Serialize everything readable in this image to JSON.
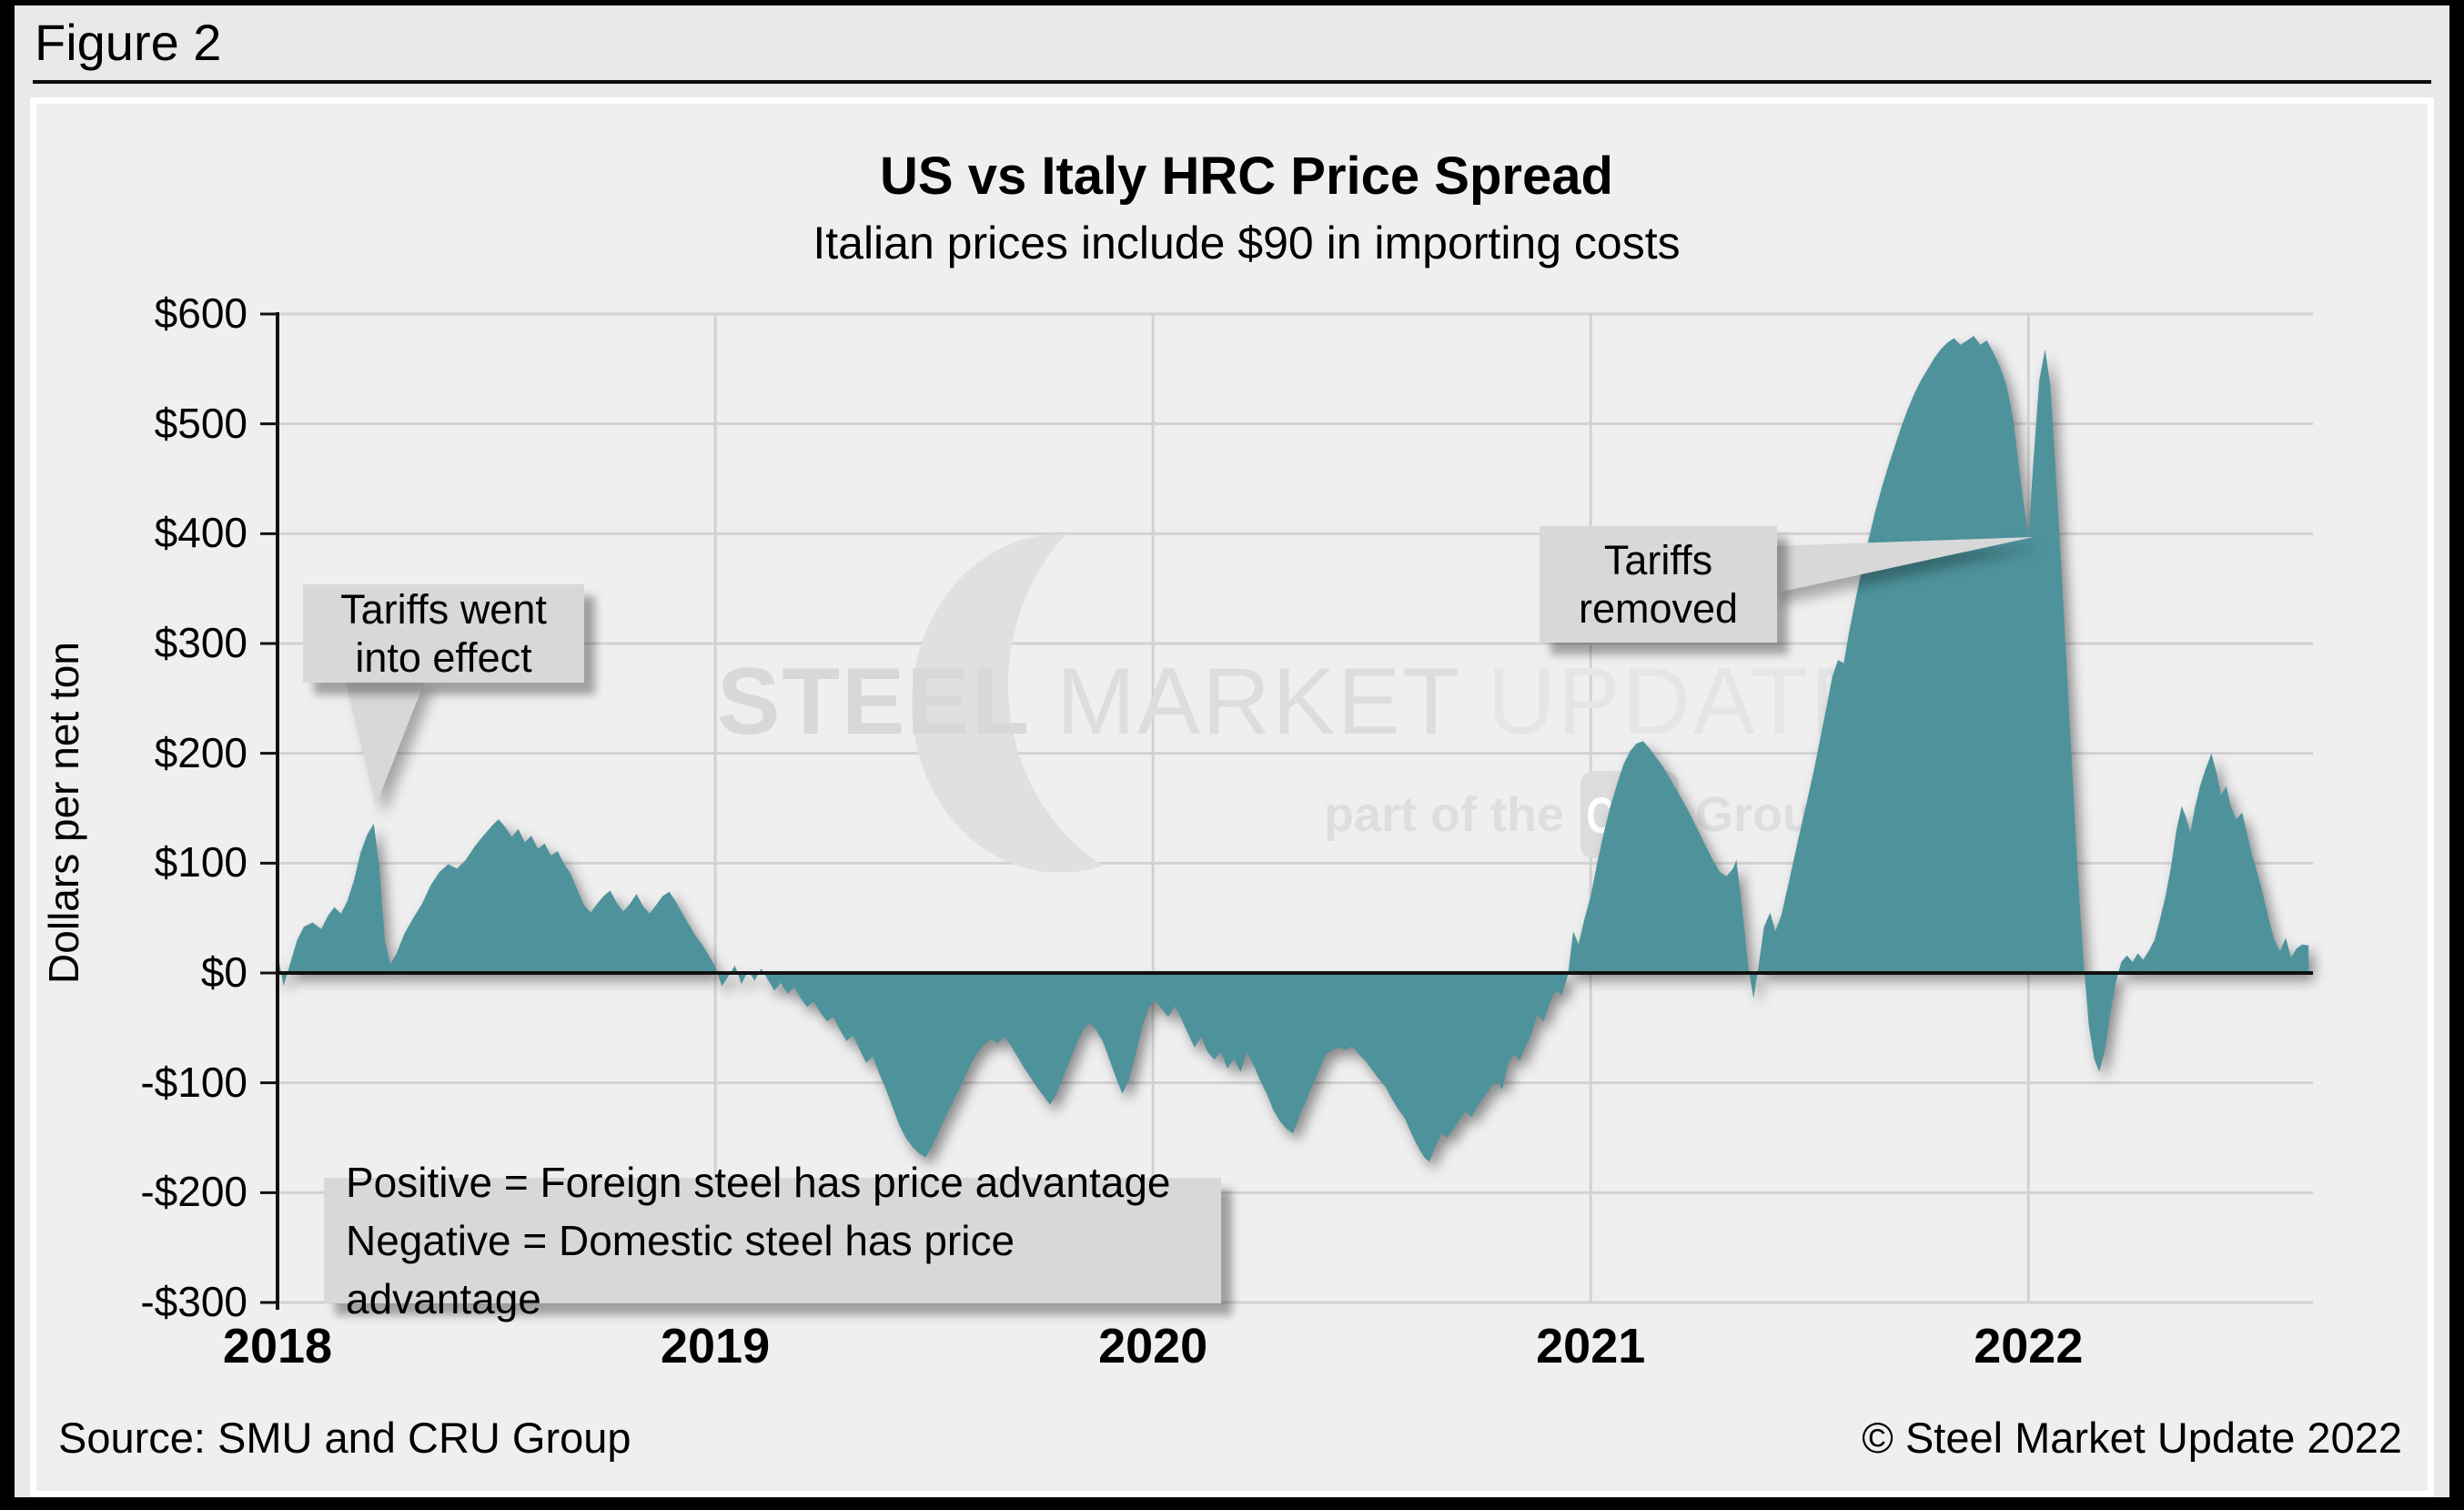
{
  "figure_label": "Figure 2",
  "header": {
    "title": "US vs Italy HRC Price Spread",
    "subtitle": "Italian prices include $90 in importing costs"
  },
  "y_axis_title": "Dollars per net ton",
  "annotations": {
    "tariffs_in_effect": "Tariffs went\ninto effect",
    "tariffs_removed": "Tariffs\nremoved",
    "note": "Positive = Foreign steel has price advantage\nNegative = Domestic steel has price advantage"
  },
  "watermark": {
    "word1": "STEEL",
    "word2": "MARKET",
    "word3": "UPDATE",
    "tagline_prefix": "part of the",
    "badge": "CRU",
    "tagline_suffix": "Group"
  },
  "footer": {
    "source": "Source: SMU and CRU Group",
    "copyright": "© Steel Market Update 2022"
  },
  "colors": {
    "area_fill": "#4e939c",
    "gridline": "#d2d2d2",
    "axis": "#111111",
    "panel_bg": "#efefef",
    "page_bg": "#e9e9e9",
    "callout_bg": "#d8d8d8",
    "watermark_gray": "#dedede"
  },
  "chart_data": {
    "type": "area",
    "title": "US vs Italy HRC Price Spread",
    "subtitle": "Italian prices include $90 in importing costs",
    "xlabel": "",
    "ylabel": "Dollars per net ton",
    "series_name": "US minus Italy HRC price spread, $ per net ton",
    "xlim": [
      2018.0,
      2022.65
    ],
    "ylim": [
      -300,
      600
    ],
    "grid": true,
    "x_ticks": [
      {
        "value": 2018,
        "label": "2018"
      },
      {
        "value": 2019,
        "label": "2019"
      },
      {
        "value": 2020,
        "label": "2020"
      },
      {
        "value": 2021,
        "label": "2021"
      },
      {
        "value": 2022,
        "label": "2022"
      }
    ],
    "y_ticks": [
      {
        "value": 600,
        "label": "$600"
      },
      {
        "value": 500,
        "label": "$500"
      },
      {
        "value": 400,
        "label": "$400"
      },
      {
        "value": 300,
        "label": "$300"
      },
      {
        "value": 200,
        "label": "$200"
      },
      {
        "value": 100,
        "label": "$100"
      },
      {
        "value": 0,
        "label": "$0"
      },
      {
        "value": -100,
        "label": "-$100"
      },
      {
        "value": -200,
        "label": "-$200"
      },
      {
        "value": -300,
        "label": "-$300"
      }
    ],
    "points": [
      [
        2018.0,
        18
      ],
      [
        2018.014,
        -12
      ],
      [
        2018.03,
        10
      ],
      [
        2018.045,
        30
      ],
      [
        2018.06,
        42
      ],
      [
        2018.08,
        46
      ],
      [
        2018.1,
        40
      ],
      [
        2018.115,
        52
      ],
      [
        2018.13,
        60
      ],
      [
        2018.145,
        54
      ],
      [
        2018.16,
        66
      ],
      [
        2018.175,
        85
      ],
      [
        2018.19,
        110
      ],
      [
        2018.205,
        126
      ],
      [
        2018.22,
        136
      ],
      [
        2018.233,
        95
      ],
      [
        2018.245,
        30
      ],
      [
        2018.258,
        8
      ],
      [
        2018.272,
        18
      ],
      [
        2018.29,
        36
      ],
      [
        2018.31,
        50
      ],
      [
        2018.33,
        63
      ],
      [
        2018.35,
        80
      ],
      [
        2018.37,
        92
      ],
      [
        2018.39,
        99
      ],
      [
        2018.41,
        95
      ],
      [
        2018.43,
        103
      ],
      [
        2018.45,
        115
      ],
      [
        2018.47,
        125
      ],
      [
        2018.49,
        134
      ],
      [
        2018.505,
        140
      ],
      [
        2018.52,
        133
      ],
      [
        2018.535,
        124
      ],
      [
        2018.55,
        131
      ],
      [
        2018.565,
        119
      ],
      [
        2018.58,
        125
      ],
      [
        2018.595,
        113
      ],
      [
        2018.61,
        118
      ],
      [
        2018.625,
        107
      ],
      [
        2018.64,
        111
      ],
      [
        2018.655,
        99
      ],
      [
        2018.67,
        90
      ],
      [
        2018.685,
        76
      ],
      [
        2018.7,
        62
      ],
      [
        2018.715,
        55
      ],
      [
        2018.73,
        63
      ],
      [
        2018.745,
        70
      ],
      [
        2018.76,
        75
      ],
      [
        2018.775,
        64
      ],
      [
        2018.79,
        56
      ],
      [
        2018.805,
        63
      ],
      [
        2018.82,
        72
      ],
      [
        2018.835,
        61
      ],
      [
        2018.85,
        54
      ],
      [
        2018.865,
        62
      ],
      [
        2018.88,
        70
      ],
      [
        2018.895,
        74
      ],
      [
        2018.91,
        65
      ],
      [
        2018.925,
        54
      ],
      [
        2018.94,
        44
      ],
      [
        2018.955,
        34
      ],
      [
        2018.97,
        26
      ],
      [
        2018.985,
        16
      ],
      [
        2019.0,
        6
      ],
      [
        2019.015,
        -12
      ],
      [
        2019.03,
        -3
      ],
      [
        2019.045,
        7
      ],
      [
        2019.06,
        -10
      ],
      [
        2019.075,
        2
      ],
      [
        2019.09,
        -7
      ],
      [
        2019.105,
        4
      ],
      [
        2019.12,
        -6
      ],
      [
        2019.135,
        -16
      ],
      [
        2019.15,
        -9
      ],
      [
        2019.165,
        -19
      ],
      [
        2019.18,
        -13
      ],
      [
        2019.195,
        -23
      ],
      [
        2019.21,
        -31
      ],
      [
        2019.225,
        -26
      ],
      [
        2019.24,
        -36
      ],
      [
        2019.255,
        -44
      ],
      [
        2019.27,
        -40
      ],
      [
        2019.285,
        -52
      ],
      [
        2019.3,
        -62
      ],
      [
        2019.315,
        -57
      ],
      [
        2019.33,
        -70
      ],
      [
        2019.345,
        -82
      ],
      [
        2019.36,
        -76
      ],
      [
        2019.375,
        -92
      ],
      [
        2019.39,
        -106
      ],
      [
        2019.405,
        -122
      ],
      [
        2019.42,
        -138
      ],
      [
        2019.435,
        -150
      ],
      [
        2019.45,
        -158
      ],
      [
        2019.465,
        -164
      ],
      [
        2019.48,
        -168
      ],
      [
        2019.495,
        -158
      ],
      [
        2019.51,
        -145
      ],
      [
        2019.525,
        -132
      ],
      [
        2019.54,
        -120
      ],
      [
        2019.555,
        -108
      ],
      [
        2019.57,
        -95
      ],
      [
        2019.585,
        -82
      ],
      [
        2019.6,
        -72
      ],
      [
        2019.615,
        -65
      ],
      [
        2019.63,
        -60
      ],
      [
        2019.645,
        -64
      ],
      [
        2019.66,
        -58
      ],
      [
        2019.675,
        -66
      ],
      [
        2019.69,
        -76
      ],
      [
        2019.705,
        -86
      ],
      [
        2019.72,
        -95
      ],
      [
        2019.735,
        -104
      ],
      [
        2019.75,
        -112
      ],
      [
        2019.765,
        -120
      ],
      [
        2019.78,
        -110
      ],
      [
        2019.795,
        -95
      ],
      [
        2019.81,
        -80
      ],
      [
        2019.825,
        -65
      ],
      [
        2019.84,
        -52
      ],
      [
        2019.855,
        -45
      ],
      [
        2019.87,
        -52
      ],
      [
        2019.885,
        -62
      ],
      [
        2019.9,
        -78
      ],
      [
        2019.915,
        -95
      ],
      [
        2019.93,
        -110
      ],
      [
        2019.945,
        -98
      ],
      [
        2019.96,
        -75
      ],
      [
        2019.975,
        -50
      ],
      [
        2019.99,
        -32
      ],
      [
        2020.005,
        -25
      ],
      [
        2020.02,
        -33
      ],
      [
        2020.035,
        -40
      ],
      [
        2020.05,
        -30
      ],
      [
        2020.065,
        -42
      ],
      [
        2020.08,
        -55
      ],
      [
        2020.095,
        -68
      ],
      [
        2020.11,
        -58
      ],
      [
        2020.125,
        -72
      ],
      [
        2020.14,
        -79
      ],
      [
        2020.155,
        -72
      ],
      [
        2020.17,
        -87
      ],
      [
        2020.185,
        -78
      ],
      [
        2020.2,
        -90
      ],
      [
        2020.215,
        -72
      ],
      [
        2020.23,
        -84
      ],
      [
        2020.245,
        -98
      ],
      [
        2020.26,
        -110
      ],
      [
        2020.275,
        -125
      ],
      [
        2020.29,
        -135
      ],
      [
        2020.305,
        -142
      ],
      [
        2020.32,
        -146
      ],
      [
        2020.335,
        -130
      ],
      [
        2020.35,
        -116
      ],
      [
        2020.365,
        -102
      ],
      [
        2020.38,
        -88
      ],
      [
        2020.395,
        -74
      ],
      [
        2020.41,
        -70
      ],
      [
        2020.425,
        -68
      ],
      [
        2020.44,
        -70
      ],
      [
        2020.455,
        -67
      ],
      [
        2020.47,
        -74
      ],
      [
        2020.485,
        -80
      ],
      [
        2020.5,
        -88
      ],
      [
        2020.515,
        -96
      ],
      [
        2020.53,
        -103
      ],
      [
        2020.545,
        -114
      ],
      [
        2020.56,
        -124
      ],
      [
        2020.575,
        -132
      ],
      [
        2020.59,
        -146
      ],
      [
        2020.605,
        -158
      ],
      [
        2020.62,
        -168
      ],
      [
        2020.632,
        -172
      ],
      [
        2020.645,
        -158
      ],
      [
        2020.66,
        -146
      ],
      [
        2020.672,
        -150
      ],
      [
        2020.685,
        -143
      ],
      [
        2020.7,
        -134
      ],
      [
        2020.715,
        -126
      ],
      [
        2020.728,
        -131
      ],
      [
        2020.74,
        -122
      ],
      [
        2020.755,
        -114
      ],
      [
        2020.77,
        -105
      ],
      [
        2020.785,
        -98
      ],
      [
        2020.798,
        -106
      ],
      [
        2020.812,
        -82
      ],
      [
        2020.825,
        -74
      ],
      [
        2020.838,
        -80
      ],
      [
        2020.852,
        -66
      ],
      [
        2020.865,
        -55
      ],
      [
        2020.878,
        -38
      ],
      [
        2020.892,
        -44
      ],
      [
        2020.906,
        -28
      ],
      [
        2020.92,
        -16
      ],
      [
        2020.934,
        -20
      ],
      [
        2020.948,
        -2
      ],
      [
        2020.96,
        38
      ],
      [
        2020.972,
        26
      ],
      [
        2020.985,
        48
      ],
      [
        2021.0,
        70
      ],
      [
        2021.015,
        100
      ],
      [
        2021.03,
        128
      ],
      [
        2021.045,
        152
      ],
      [
        2021.06,
        172
      ],
      [
        2021.075,
        190
      ],
      [
        2021.09,
        202
      ],
      [
        2021.105,
        209
      ],
      [
        2021.12,
        211
      ],
      [
        2021.135,
        204
      ],
      [
        2021.15,
        196
      ],
      [
        2021.165,
        188
      ],
      [
        2021.18,
        178
      ],
      [
        2021.2,
        164
      ],
      [
        2021.22,
        150
      ],
      [
        2021.24,
        134
      ],
      [
        2021.26,
        118
      ],
      [
        2021.28,
        102
      ],
      [
        2021.295,
        92
      ],
      [
        2021.31,
        88
      ],
      [
        2021.325,
        95
      ],
      [
        2021.333,
        103
      ],
      [
        2021.347,
        55
      ],
      [
        2021.36,
        5
      ],
      [
        2021.372,
        -23
      ],
      [
        2021.384,
        8
      ],
      [
        2021.396,
        42
      ],
      [
        2021.41,
        55
      ],
      [
        2021.422,
        38
      ],
      [
        2021.435,
        52
      ],
      [
        2021.45,
        78
      ],
      [
        2021.465,
        105
      ],
      [
        2021.48,
        132
      ],
      [
        2021.495,
        158
      ],
      [
        2021.51,
        185
      ],
      [
        2021.525,
        215
      ],
      [
        2021.54,
        245
      ],
      [
        2021.552,
        270
      ],
      [
        2021.565,
        285
      ],
      [
        2021.578,
        282
      ],
      [
        2021.59,
        310
      ],
      [
        2021.605,
        340
      ],
      [
        2021.62,
        368
      ],
      [
        2021.635,
        395
      ],
      [
        2021.65,
        420
      ],
      [
        2021.665,
        442
      ],
      [
        2021.68,
        462
      ],
      [
        2021.695,
        480
      ],
      [
        2021.71,
        498
      ],
      [
        2021.725,
        514
      ],
      [
        2021.74,
        528
      ],
      [
        2021.755,
        540
      ],
      [
        2021.77,
        550
      ],
      [
        2021.785,
        560
      ],
      [
        2021.8,
        568
      ],
      [
        2021.815,
        574
      ],
      [
        2021.83,
        578
      ],
      [
        2021.845,
        572
      ],
      [
        2021.86,
        576
      ],
      [
        2021.875,
        580
      ],
      [
        2021.89,
        572
      ],
      [
        2021.905,
        576
      ],
      [
        2021.92,
        565
      ],
      [
        2021.935,
        552
      ],
      [
        2021.95,
        535
      ],
      [
        2021.965,
        505
      ],
      [
        2021.978,
        462
      ],
      [
        2021.99,
        425
      ],
      [
        2022.0,
        398
      ],
      [
        2022.012,
        470
      ],
      [
        2022.025,
        540
      ],
      [
        2022.038,
        568
      ],
      [
        2022.05,
        535
      ],
      [
        2022.062,
        460
      ],
      [
        2022.075,
        370
      ],
      [
        2022.088,
        275
      ],
      [
        2022.1,
        185
      ],
      [
        2022.112,
        95
      ],
      [
        2022.125,
        15
      ],
      [
        2022.138,
        -48
      ],
      [
        2022.15,
        -78
      ],
      [
        2022.162,
        -90
      ],
      [
        2022.175,
        -70
      ],
      [
        2022.188,
        -35
      ],
      [
        2022.2,
        -8
      ],
      [
        2022.212,
        10
      ],
      [
        2022.225,
        16
      ],
      [
        2022.238,
        10
      ],
      [
        2022.25,
        18
      ],
      [
        2022.262,
        12
      ],
      [
        2022.275,
        20
      ],
      [
        2022.288,
        30
      ],
      [
        2022.3,
        48
      ],
      [
        2022.312,
        68
      ],
      [
        2022.325,
        95
      ],
      [
        2022.338,
        130
      ],
      [
        2022.35,
        152
      ],
      [
        2022.36,
        142
      ],
      [
        2022.37,
        128
      ],
      [
        2022.38,
        150
      ],
      [
        2022.392,
        170
      ],
      [
        2022.405,
        186
      ],
      [
        2022.418,
        200
      ],
      [
        2022.43,
        182
      ],
      [
        2022.44,
        162
      ],
      [
        2022.452,
        170
      ],
      [
        2022.462,
        152
      ],
      [
        2022.475,
        140
      ],
      [
        2022.488,
        146
      ],
      [
        2022.5,
        126
      ],
      [
        2022.512,
        106
      ],
      [
        2022.525,
        88
      ],
      [
        2022.538,
        68
      ],
      [
        2022.55,
        48
      ],
      [
        2022.562,
        30
      ],
      [
        2022.575,
        20
      ],
      [
        2022.588,
        32
      ],
      [
        2022.6,
        14
      ],
      [
        2022.612,
        22
      ],
      [
        2022.625,
        26
      ],
      [
        2022.64,
        25
      ]
    ],
    "legend_position": "none",
    "annotations": [
      {
        "text": "Tariffs went into effect",
        "points_to_x": 2018.22,
        "points_to_y": 136
      },
      {
        "text": "Tariffs removed",
        "points_to_x": 2022.0,
        "points_to_y": 398
      }
    ]
  }
}
